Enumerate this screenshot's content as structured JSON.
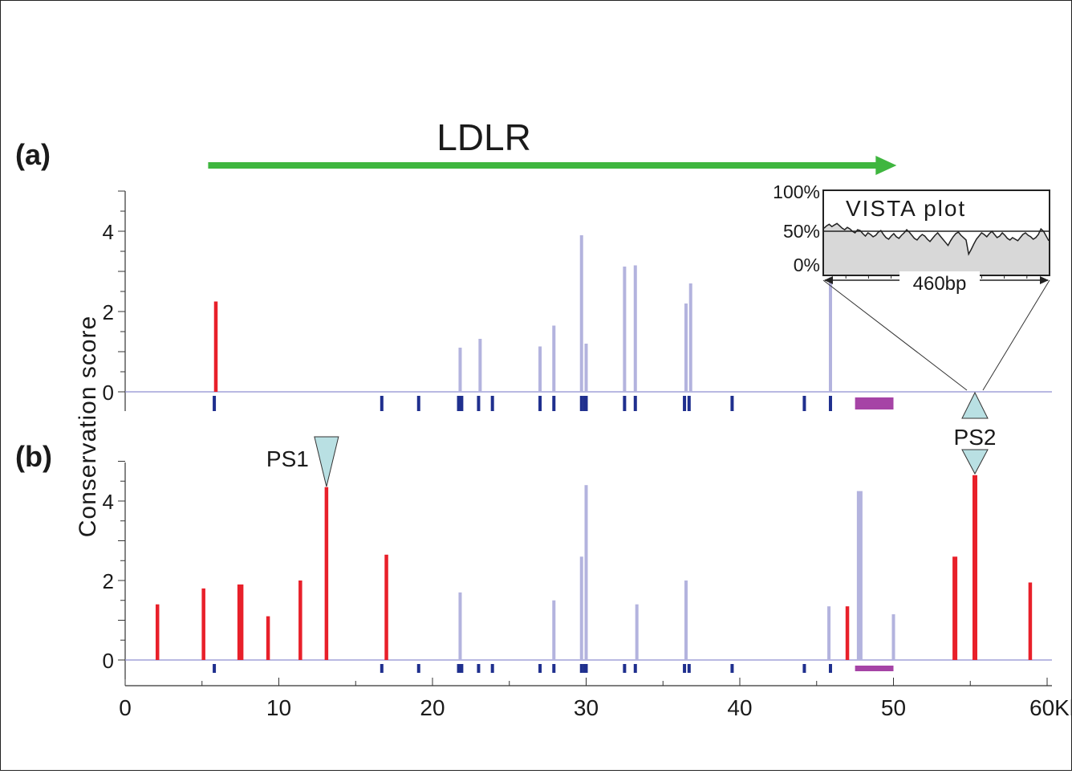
{
  "colors": {
    "red": "#e8202a",
    "lavender": "#b3b3de",
    "exon": "#1f2f8e",
    "utr": "#a644a6",
    "arrow": "#3fb63f",
    "marker": "#b9e0e3",
    "baseline": "#8f8fd0",
    "vista_fill": "#d8d8d8"
  },
  "chart_data": {
    "type": "bar",
    "gene": "LDLR",
    "x_unit_label": "60Kb",
    "ylabel": "Conservation score",
    "xlim": [
      0,
      61
    ],
    "ylim": [
      0,
      5
    ],
    "x_ticks": [
      {
        "value": 0,
        "label": "0"
      },
      {
        "value": 10,
        "label": "10"
      },
      {
        "value": 20,
        "label": "20"
      },
      {
        "value": 30,
        "label": "30"
      },
      {
        "value": 40,
        "label": "40"
      },
      {
        "value": 50,
        "label": "50"
      },
      {
        "value": 60,
        "label": "60Kb"
      }
    ],
    "y_ticks": [
      {
        "value": 0,
        "label": "0"
      },
      {
        "value": 2,
        "label": "2"
      },
      {
        "value": 4,
        "label": "4"
      }
    ],
    "gene_span_kb": [
      5.4,
      50.2
    ],
    "exons_kb": [
      5.8,
      16.7,
      19.1,
      21.7,
      21.9,
      23.0,
      23.9,
      27.0,
      27.9,
      29.7,
      29.9,
      30.0,
      32.5,
      33.2,
      36.4,
      36.7,
      39.5,
      44.2,
      45.9
    ],
    "utr_kb": [
      47.5,
      50.0
    ],
    "panels": [
      {
        "label": "(a)",
        "bars": [
          {
            "x": 5.9,
            "y": 2.25,
            "kind": "red",
            "w": 1
          },
          {
            "x": 21.8,
            "y": 1.1,
            "kind": "lavender",
            "w": 1
          },
          {
            "x": 23.1,
            "y": 1.32,
            "kind": "lavender",
            "w": 1
          },
          {
            "x": 27.0,
            "y": 1.13,
            "kind": "lavender",
            "w": 1
          },
          {
            "x": 27.9,
            "y": 1.65,
            "kind": "lavender",
            "w": 1
          },
          {
            "x": 29.7,
            "y": 3.9,
            "kind": "lavender",
            "w": 1
          },
          {
            "x": 30.0,
            "y": 1.2,
            "kind": "lavender",
            "w": 1
          },
          {
            "x": 32.5,
            "y": 3.12,
            "kind": "lavender",
            "w": 1
          },
          {
            "x": 33.2,
            "y": 3.15,
            "kind": "lavender",
            "w": 1
          },
          {
            "x": 36.5,
            "y": 2.2,
            "kind": "lavender",
            "w": 1
          },
          {
            "x": 36.8,
            "y": 2.7,
            "kind": "lavender",
            "w": 1
          },
          {
            "x": 45.9,
            "y": 2.85,
            "kind": "lavender",
            "w": 1
          }
        ]
      },
      {
        "label": "(b)",
        "bars": [
          {
            "x": 2.1,
            "y": 1.4,
            "kind": "red",
            "w": 1
          },
          {
            "x": 5.1,
            "y": 1.8,
            "kind": "red",
            "w": 1
          },
          {
            "x": 7.5,
            "y": 1.9,
            "kind": "red",
            "w": 2
          },
          {
            "x": 9.3,
            "y": 1.1,
            "kind": "red",
            "w": 1
          },
          {
            "x": 11.4,
            "y": 2.0,
            "kind": "red",
            "w": 1
          },
          {
            "x": 13.1,
            "y": 4.35,
            "kind": "red",
            "w": 1
          },
          {
            "x": 17.0,
            "y": 2.65,
            "kind": "red",
            "w": 1
          },
          {
            "x": 21.8,
            "y": 1.7,
            "kind": "lavender",
            "w": 1
          },
          {
            "x": 27.9,
            "y": 1.5,
            "kind": "lavender",
            "w": 1
          },
          {
            "x": 29.7,
            "y": 2.6,
            "kind": "lavender",
            "w": 1
          },
          {
            "x": 30.0,
            "y": 4.4,
            "kind": "lavender",
            "w": 1
          },
          {
            "x": 33.3,
            "y": 1.4,
            "kind": "lavender",
            "w": 1
          },
          {
            "x": 36.5,
            "y": 2.0,
            "kind": "lavender",
            "w": 1
          },
          {
            "x": 45.8,
            "y": 1.35,
            "kind": "lavender",
            "w": 1
          },
          {
            "x": 47.0,
            "y": 1.35,
            "kind": "red",
            "w": 1
          },
          {
            "x": 47.8,
            "y": 4.25,
            "kind": "lavender",
            "w": 2
          },
          {
            "x": 50.0,
            "y": 1.15,
            "kind": "lavender",
            "w": 1
          },
          {
            "x": 54.0,
            "y": 2.6,
            "kind": "red",
            "w": 1.5
          },
          {
            "x": 55.3,
            "y": 4.65,
            "kind": "red",
            "w": 1.5
          },
          {
            "x": 58.9,
            "y": 1.95,
            "kind": "red",
            "w": 1
          }
        ]
      }
    ],
    "markers": [
      {
        "label": "PS1",
        "x": 13.1
      },
      {
        "label": "PS2",
        "x": 55.3
      }
    ],
    "vista_inset": {
      "title": "VISTA plot",
      "y_labels": [
        "100%",
        "50%",
        "0%"
      ],
      "span_label": "460bp",
      "source_x": 55.3,
      "curve_percent": [
        58,
        61,
        63,
        60,
        62,
        64,
        61,
        58,
        56,
        59,
        57,
        54,
        52,
        56,
        55,
        51,
        48,
        52,
        50,
        47,
        49,
        53,
        55,
        50,
        46,
        44,
        48,
        51,
        47,
        45,
        49,
        52,
        56,
        53,
        49,
        45,
        43,
        47,
        50,
        48,
        44,
        41,
        45,
        49,
        52,
        48,
        44,
        40,
        36,
        42,
        47,
        51,
        53,
        49,
        46,
        43,
        25,
        31,
        38,
        44,
        48,
        52,
        50,
        47,
        51,
        54,
        50,
        46,
        48,
        52,
        49,
        45,
        43,
        46,
        44,
        42,
        46,
        50,
        52,
        49,
        47,
        44,
        46,
        50,
        57,
        54,
        48,
        42
      ]
    }
  }
}
